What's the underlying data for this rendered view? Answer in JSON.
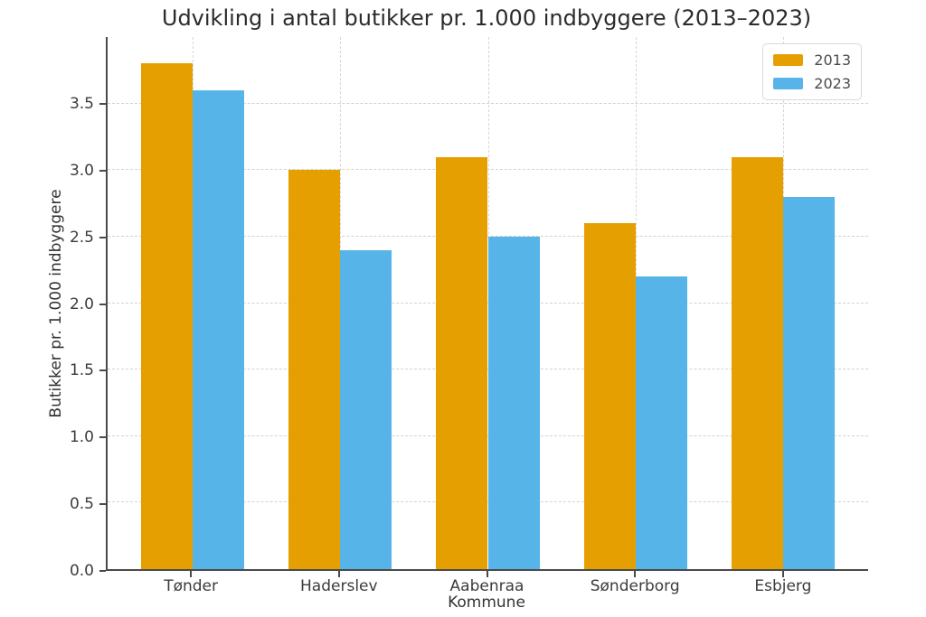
{
  "figure": {
    "background": "#ffffff",
    "text_color": "#3c3c3c",
    "spine_color": "#4a4a4a",
    "grid_color": "#d4d4d4"
  },
  "chart_data": {
    "type": "bar",
    "title": "Udvikling i antal butikker pr. 1.000 indbyggere (2013–2023)",
    "xlabel": "Kommune",
    "ylabel": "Butikker pr. 1.000 indbyggere",
    "categories": [
      "Tønder",
      "Haderslev",
      "Aabenraa",
      "Sønderborg",
      "Esbjerg"
    ],
    "series": [
      {
        "name": "2013",
        "color": "#E69F00",
        "values": [
          3.8,
          3.0,
          3.1,
          2.6,
          3.1
        ]
      },
      {
        "name": "2023",
        "color": "#56B4E9",
        "values": [
          3.6,
          2.4,
          2.5,
          2.2,
          2.8
        ]
      }
    ],
    "ylim": [
      0.0,
      4.0
    ],
    "yticks": [
      0.0,
      0.5,
      1.0,
      1.5,
      2.0,
      2.5,
      3.0,
      3.5
    ],
    "ytick_labels": [
      "0.0",
      "0.5",
      "1.0",
      "1.5",
      "2.0",
      "2.5",
      "3.0",
      "3.5"
    ],
    "grid": true,
    "grid_style": "dashed",
    "legend_position": "upper right",
    "legend_entries": [
      "2013",
      "2023"
    ]
  }
}
